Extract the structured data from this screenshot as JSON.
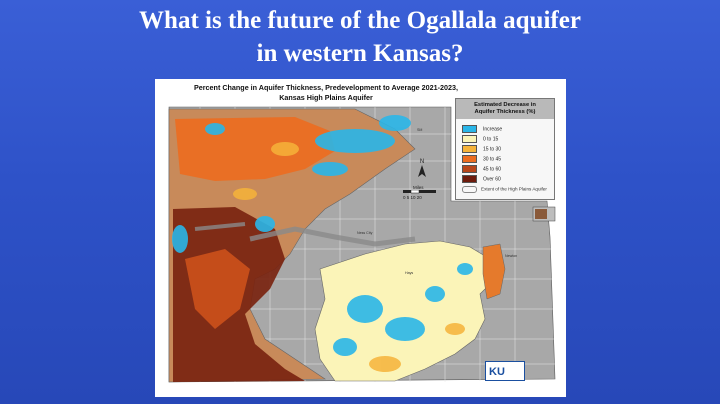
{
  "slide": {
    "title_line1": "What is the future of the Ogallala aquifer",
    "title_line2": "in western Kansas?"
  },
  "map": {
    "title_line1": "Percent Change in Aquifer Thickness, Predevelopment to Average 2021-2023,",
    "title_line2": "Kansas High Plains Aquifer",
    "legend": {
      "title_line1": "Estimated Decrease in",
      "title_line2": "Aquifer Thickness (%)",
      "items": [
        {
          "label": "Increase",
          "color": "#2ab6e8"
        },
        {
          "label": "0 to 15",
          "color": "#fbf4b8"
        },
        {
          "label": "15 to 30",
          "color": "#f6b33a"
        },
        {
          "label": "30 to 45",
          "color": "#ec6c1f"
        },
        {
          "label": "45 to 60",
          "color": "#b7461a"
        },
        {
          "label": "Over 60",
          "color": "#6d1b0c"
        }
      ],
      "outline_label": "Extent of the High Plains Aquifer"
    },
    "north_label": "N",
    "scale_label": "Miles",
    "scale_ticks": "0  5  10        20",
    "logo_text": "KU"
  }
}
